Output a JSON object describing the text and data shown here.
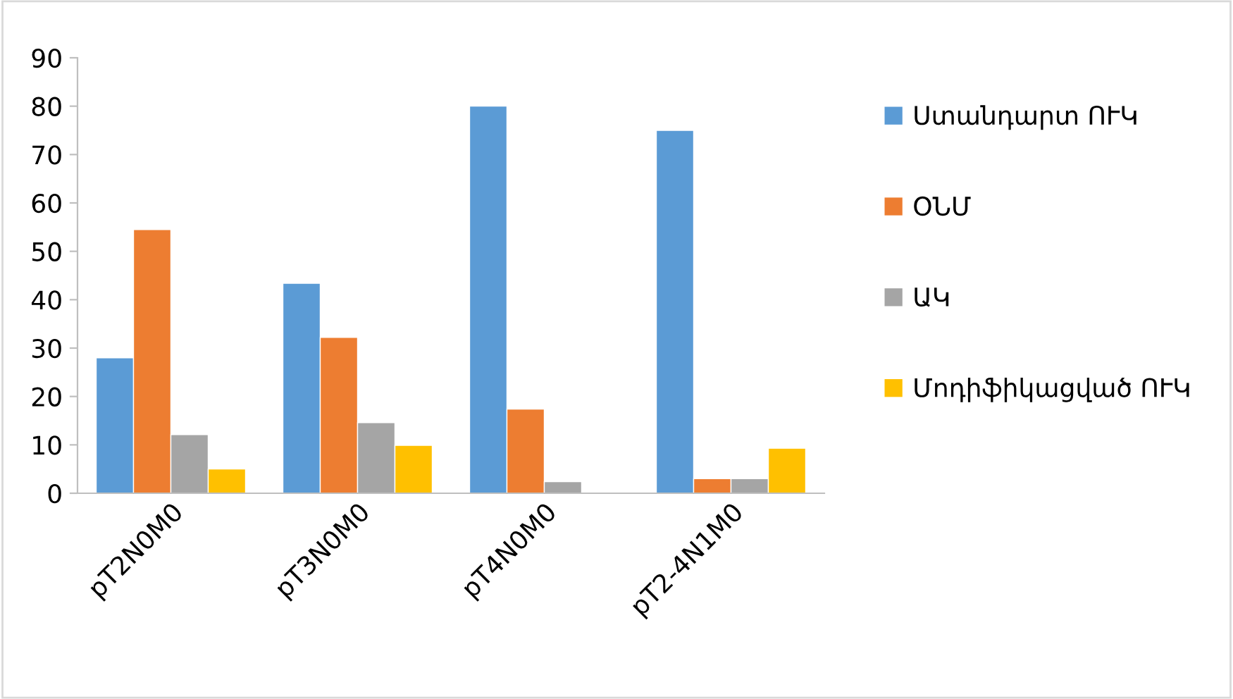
{
  "chart_data": {
    "type": "bar",
    "categories": [
      "pT2N0M0",
      "pT3N0M0",
      "pT4N0M0",
      "pT2-4N1M0"
    ],
    "series": [
      {
        "name": "Ստանդարտ ՈՒԿ",
        "color": "#5b9bd5",
        "values": [
          28,
          43.4,
          80,
          75
        ]
      },
      {
        "name": "ՕՆՄ",
        "color": "#ed7d31",
        "values": [
          54.5,
          32.2,
          17.4,
          3
        ]
      },
      {
        "name": "ԱԿ",
        "color": "#a5a5a5",
        "values": [
          12.1,
          14.6,
          2.4,
          3
        ]
      },
      {
        "name": "Մոդիֆիկացված ՈՒԿ",
        "color": "#ffc000",
        "values": [
          5,
          9.9,
          null,
          9.3
        ]
      }
    ],
    "ylim": [
      0,
      90
    ],
    "yticks": [
      0,
      10,
      20,
      30,
      40,
      50,
      60,
      70,
      80,
      90
    ],
    "grid": false,
    "legend": "right"
  }
}
